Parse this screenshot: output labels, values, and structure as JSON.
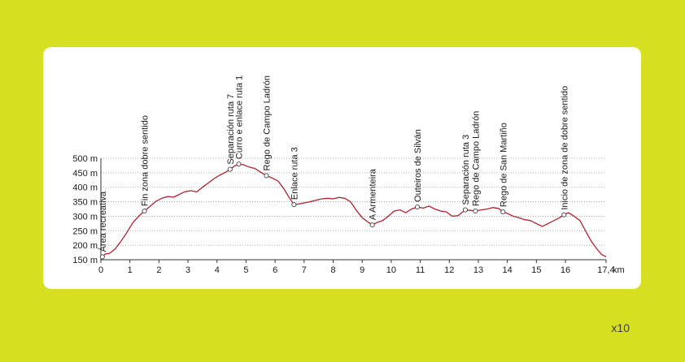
{
  "corner_label": "x10",
  "chart_data": {
    "type": "area",
    "title": "",
    "xlabel": "",
    "ylabel": "",
    "x_unit": "km",
    "xlim": [
      0,
      17.4
    ],
    "ylim": [
      150,
      500
    ],
    "x_ticks": [
      {
        "value": 0,
        "label": "0"
      },
      {
        "value": 1,
        "label": "1"
      },
      {
        "value": 2,
        "label": "2"
      },
      {
        "value": 3,
        "label": "3"
      },
      {
        "value": 4,
        "label": "4"
      },
      {
        "value": 5,
        "label": "5"
      },
      {
        "value": 6,
        "label": "6"
      },
      {
        "value": 7,
        "label": "7"
      },
      {
        "value": 8,
        "label": "8"
      },
      {
        "value": 9,
        "label": "9"
      },
      {
        "value": 10,
        "label": "10"
      },
      {
        "value": 11,
        "label": "11"
      },
      {
        "value": 12,
        "label": "12"
      },
      {
        "value": 13,
        "label": "13"
      },
      {
        "value": 14,
        "label": "14"
      },
      {
        "value": 15,
        "label": "15"
      },
      {
        "value": 16,
        "label": "16"
      },
      {
        "value": 17.4,
        "label": "17,4"
      }
    ],
    "y_ticks": [
      {
        "value": 150,
        "label": "150 m"
      },
      {
        "value": 200,
        "label": "200 m"
      },
      {
        "value": 250,
        "label": "250 m"
      },
      {
        "value": 300,
        "label": "300 m"
      },
      {
        "value": 350,
        "label": "350 m"
      },
      {
        "value": 400,
        "label": "400 m"
      },
      {
        "value": 450,
        "label": "450 m"
      },
      {
        "value": 500,
        "label": "500 m"
      }
    ],
    "grid": "horizontal-dotted",
    "line_color": "#b5202c",
    "series": [
      {
        "x": [
          0,
          0.15,
          0.3,
          0.5,
          0.7,
          0.9,
          1.1,
          1.3,
          1.5,
          1.7,
          1.9,
          2.1,
          2.3,
          2.5,
          2.7,
          2.9,
          3.1,
          3.3,
          3.5,
          3.7,
          3.9,
          4.1,
          4.3,
          4.45,
          4.6,
          4.75,
          4.9,
          5.1,
          5.3,
          5.5,
          5.7,
          5.9,
          6.1,
          6.3,
          6.5,
          6.65,
          6.8,
          7.0,
          7.2,
          7.4,
          7.6,
          7.8,
          8.0,
          8.2,
          8.4,
          8.6,
          8.8,
          9.0,
          9.2,
          9.35,
          9.5,
          9.7,
          9.9,
          10.1,
          10.3,
          10.5,
          10.7,
          10.9,
          11.1,
          11.3,
          11.5,
          11.7,
          11.9,
          12.1,
          12.3,
          12.55,
          12.75,
          12.9,
          13.1,
          13.3,
          13.5,
          13.7,
          13.85,
          14.0,
          14.2,
          14.4,
          14.6,
          14.8,
          15.0,
          15.2,
          15.4,
          15.6,
          15.8,
          15.95,
          16.1,
          16.3,
          16.5,
          16.7,
          16.9,
          17.1,
          17.25,
          17.4
        ],
        "y": [
          155,
          170,
          172,
          188,
          215,
          245,
          278,
          300,
          318,
          335,
          352,
          362,
          368,
          366,
          375,
          385,
          388,
          384,
          400,
          415,
          430,
          442,
          452,
          462,
          473,
          480,
          478,
          470,
          465,
          452,
          440,
          432,
          422,
          395,
          362,
          340,
          342,
          346,
          350,
          355,
          360,
          362,
          360,
          365,
          362,
          350,
          320,
          295,
          280,
          270,
          278,
          285,
          300,
          318,
          322,
          312,
          325,
          332,
          328,
          335,
          325,
          318,
          315,
          300,
          302,
          322,
          320,
          318,
          322,
          325,
          330,
          327,
          315,
          310,
          300,
          295,
          288,
          285,
          275,
          265,
          275,
          285,
          295,
          305,
          312,
          300,
          285,
          248,
          212,
          185,
          168,
          160
        ]
      }
    ],
    "waypoints": [
      {
        "x": 0.05,
        "label": "Área recreativa"
      },
      {
        "x": 1.5,
        "label": "Fin zona dobre sentido"
      },
      {
        "x": 4.45,
        "label": "Separación ruta 7"
      },
      {
        "x": 4.75,
        "label": "Curro e enlace ruta 1"
      },
      {
        "x": 5.7,
        "label": "Rego de Campo Ladrón"
      },
      {
        "x": 6.65,
        "label": "Enlace ruta 3"
      },
      {
        "x": 9.35,
        "label": "A Armenteira"
      },
      {
        "x": 10.9,
        "label": "Outeiros de Silván"
      },
      {
        "x": 12.55,
        "label": "Separación ruta 3"
      },
      {
        "x": 12.9,
        "label": "Rego de Campo Ladrón"
      },
      {
        "x": 13.85,
        "label": "Rego de San Martiño"
      },
      {
        "x": 15.95,
        "label": "Inicio de zona de dobre sentido"
      }
    ]
  }
}
